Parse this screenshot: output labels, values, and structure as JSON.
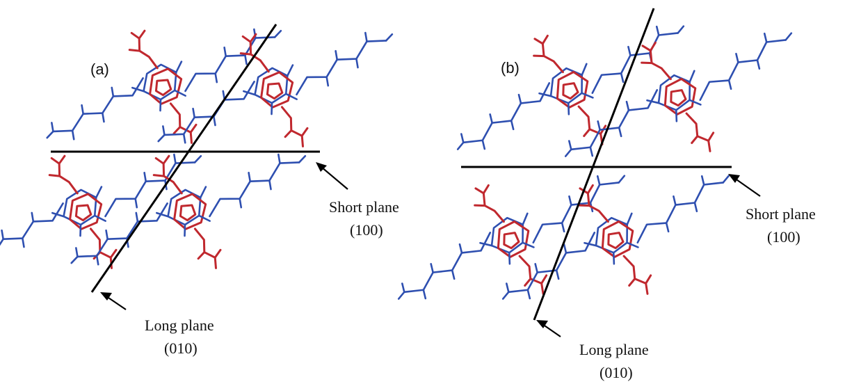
{
  "panels": [
    {
      "label": "(a)",
      "short_plane": {
        "name": "Short plane",
        "index": "(100)"
      },
      "long_plane": {
        "name": "Long plane",
        "index": "(010)"
      }
    },
    {
      "label": "(b)",
      "short_plane": {
        "name": "Short plane",
        "index": "(100)"
      },
      "long_plane": {
        "name": "Long plane",
        "index": "(010)"
      }
    }
  ],
  "colors": {
    "alkyl": "#2e4fb0",
    "core": "#c0282e",
    "line": "#000000"
  }
}
